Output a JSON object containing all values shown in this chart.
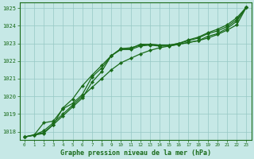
{
  "xlabel": "Graphe pression niveau de la mer (hPa)",
  "bg_color": "#c6e8e6",
  "grid_color": "#96c8c4",
  "line_color": "#1a6b1a",
  "xlim": [
    -0.5,
    23.5
  ],
  "ylim": [
    1017.55,
    1025.3
  ],
  "yticks": [
    1018,
    1019,
    1020,
    1021,
    1022,
    1023,
    1024,
    1025
  ],
  "xticks": [
    0,
    1,
    2,
    3,
    4,
    5,
    6,
    7,
    8,
    9,
    10,
    11,
    12,
    13,
    14,
    15,
    16,
    17,
    18,
    19,
    20,
    21,
    22,
    23
  ],
  "line1_x": [
    0,
    1,
    2,
    3,
    4,
    5,
    6,
    7,
    8,
    9,
    10,
    11,
    12,
    13,
    14,
    15,
    16,
    17,
    18,
    19,
    20,
    21,
    22,
    23
  ],
  "line1_y": [
    1017.7,
    1017.8,
    1017.9,
    1018.4,
    1018.9,
    1019.4,
    1019.9,
    1020.8,
    1021.4,
    1022.3,
    1022.65,
    1022.65,
    1022.85,
    1022.9,
    1022.85,
    1022.85,
    1022.95,
    1023.05,
    1023.15,
    1023.4,
    1023.55,
    1023.85,
    1024.25,
    1025.05
  ],
  "line2_x": [
    0,
    1,
    2,
    3,
    4,
    5,
    6,
    7,
    8,
    9,
    10,
    11,
    12,
    13,
    14,
    15,
    16,
    17,
    18,
    19,
    20,
    21,
    22,
    23
  ],
  "line2_y": [
    1017.7,
    1017.8,
    1018.5,
    1018.6,
    1019.3,
    1019.6,
    1020.1,
    1021.1,
    1021.6,
    1022.3,
    1022.7,
    1022.75,
    1022.9,
    1022.95,
    1022.9,
    1022.9,
    1023.0,
    1023.15,
    1023.3,
    1023.55,
    1023.7,
    1023.95,
    1024.35,
    1025.05
  ],
  "line3_x": [
    0,
    1,
    2,
    3,
    4,
    5,
    6,
    7,
    8,
    9,
    10,
    11,
    12,
    13,
    14,
    15,
    16,
    17,
    18,
    19,
    20,
    21,
    22,
    23
  ],
  "line3_y": [
    1017.7,
    1017.8,
    1018.05,
    1018.5,
    1019.0,
    1019.5,
    1020.0,
    1020.5,
    1021.0,
    1021.5,
    1021.9,
    1022.15,
    1022.4,
    1022.6,
    1022.75,
    1022.85,
    1022.95,
    1023.05,
    1023.15,
    1023.3,
    1023.5,
    1023.75,
    1024.05,
    1025.05
  ],
  "line4_x": [
    0,
    2,
    3,
    4,
    5,
    6,
    7,
    8,
    9,
    10,
    11,
    12,
    13,
    14,
    15,
    16,
    17,
    18,
    19,
    20,
    21,
    22,
    23
  ],
  "line4_y": [
    1017.7,
    1017.95,
    1018.4,
    1019.35,
    1019.85,
    1020.6,
    1021.2,
    1021.75,
    1022.3,
    1022.7,
    1022.7,
    1022.95,
    1022.95,
    1022.9,
    1022.9,
    1023.0,
    1023.2,
    1023.35,
    1023.6,
    1023.8,
    1024.05,
    1024.45,
    1025.05
  ]
}
